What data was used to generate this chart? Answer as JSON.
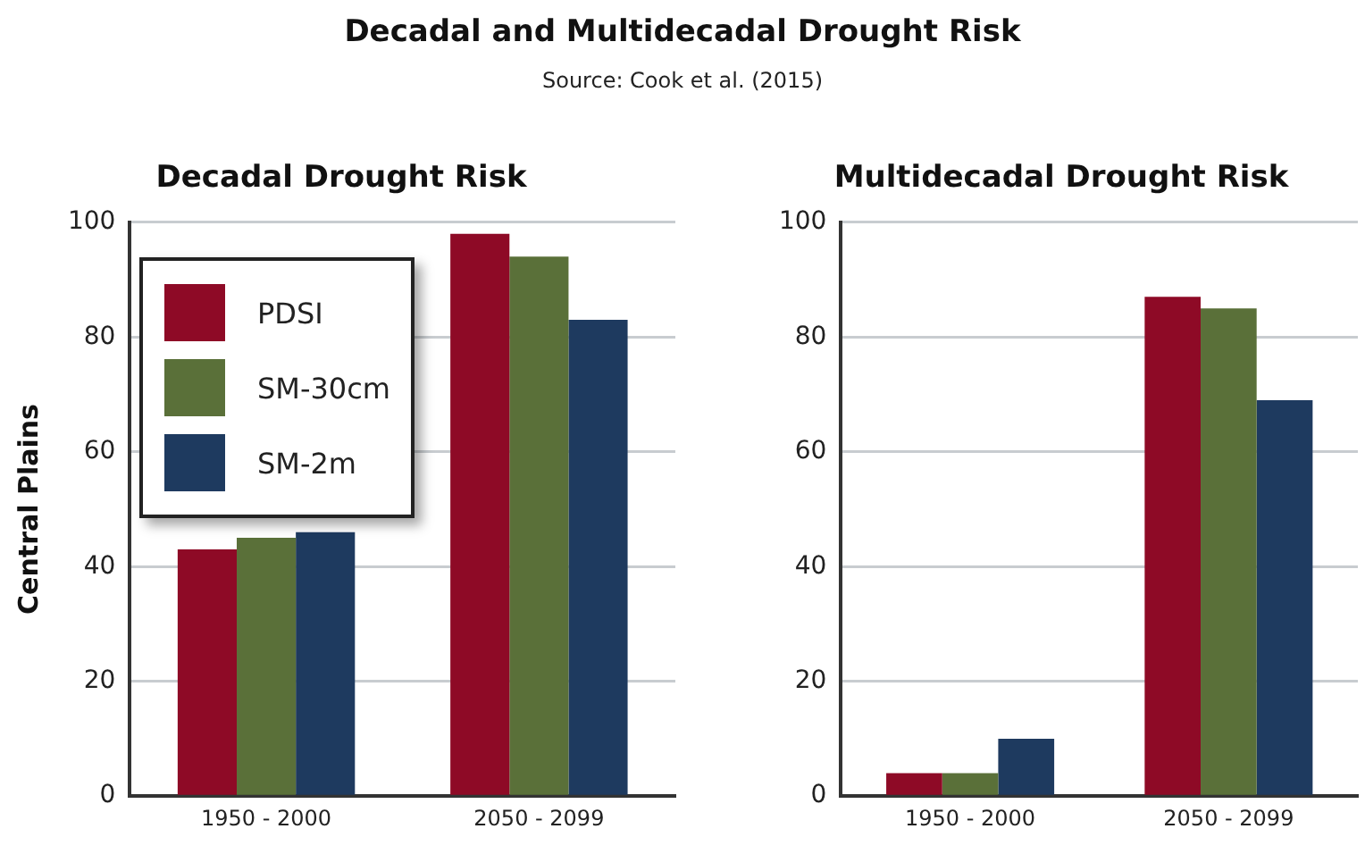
{
  "chart_data": [
    {
      "type": "bar",
      "title": "Decadal Drought Risk",
      "ylabel": "Central Plains",
      "annotations": [
        "Decadal and Multidecadal Drought Risk",
        "Source: Cook et al. (2015)"
      ],
      "categories": [
        "1950 - 2000",
        "2050 - 2099"
      ],
      "series": [
        {
          "name": "PDSI",
          "color": "#8e0a26",
          "values": [
            43,
            98
          ]
        },
        {
          "name": "SM-30cm",
          "color": "#5a7039",
          "values": [
            45,
            94
          ]
        },
        {
          "name": "SM-2m",
          "color": "#1e3a5f",
          "values": [
            46,
            83
          ]
        }
      ],
      "ylim": [
        0,
        100
      ],
      "yticks": [
        0,
        20,
        40,
        60,
        80,
        100
      ],
      "grid": "y",
      "legend": "top left"
    },
    {
      "type": "bar",
      "title": "Multidecadal Drought Risk",
      "categories": [
        "1950 - 2000",
        "2050 - 2099"
      ],
      "series": [
        {
          "color": "#8e0a26",
          "values": [
            4,
            87
          ]
        },
        {
          "color": "#5a7039",
          "values": [
            4,
            85
          ]
        },
        {
          "color": "#1e3a5f",
          "values": [
            10,
            69
          ]
        }
      ],
      "ylim": [
        0,
        100
      ],
      "yticks": [
        0,
        20,
        40,
        60,
        80,
        100
      ],
      "grid": "y"
    }
  ]
}
